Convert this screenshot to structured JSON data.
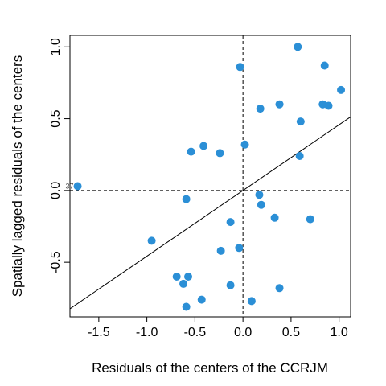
{
  "chart_data": {
    "type": "scatter",
    "title": "",
    "xlabel": "Residuals of the centers of the CCRJM",
    "ylabel": "Spatially lagged residuals of the centers",
    "xlim": [
      -1.8,
      1.12
    ],
    "ylim": [
      -0.88,
      1.08
    ],
    "xticks": [
      -1.5,
      -1.0,
      -0.5,
      0.0,
      0.5,
      1.0
    ],
    "xtick_labels": [
      "-1.5",
      "-1.0",
      "-0.5",
      "0.0",
      "0.5",
      "1.0"
    ],
    "yticks": [
      -0.5,
      0.0,
      0.5,
      1.0
    ],
    "ytick_labels": [
      "-0.5",
      "0.0",
      "0.5",
      "1.0"
    ],
    "point_color": "#2b8fd6",
    "grid": false,
    "reference_lines": [
      {
        "type": "vline",
        "x": 0,
        "style": "dashed"
      },
      {
        "type": "hline",
        "y": 0,
        "style": "dashed"
      }
    ],
    "regression_line": {
      "intercept": 0,
      "slope": 0.4577
    },
    "influential_label": {
      "text": "37",
      "x": -1.72,
      "y": 0.03
    },
    "points": [
      {
        "x": -1.72,
        "y": 0.03
      },
      {
        "x": -0.95,
        "y": -0.35
      },
      {
        "x": -0.69,
        "y": -0.6
      },
      {
        "x": -0.62,
        "y": -0.65
      },
      {
        "x": -0.59,
        "y": -0.81
      },
      {
        "x": -0.57,
        "y": -0.6
      },
      {
        "x": -0.59,
        "y": -0.06
      },
      {
        "x": -0.54,
        "y": 0.27
      },
      {
        "x": -0.43,
        "y": -0.76
      },
      {
        "x": -0.41,
        "y": 0.31
      },
      {
        "x": -0.24,
        "y": 0.26
      },
      {
        "x": -0.23,
        "y": -0.42
      },
      {
        "x": -0.13,
        "y": -0.66
      },
      {
        "x": -0.13,
        "y": -0.22
      },
      {
        "x": -0.04,
        "y": -0.4
      },
      {
        "x": -0.03,
        "y": 0.86
      },
      {
        "x": 0.02,
        "y": 0.32
      },
      {
        "x": 0.09,
        "y": -0.77
      },
      {
        "x": 0.17,
        "y": -0.03
      },
      {
        "x": 0.19,
        "y": -0.1
      },
      {
        "x": 0.18,
        "y": 0.57
      },
      {
        "x": 0.33,
        "y": -0.19
      },
      {
        "x": 0.38,
        "y": -0.68
      },
      {
        "x": 0.38,
        "y": 0.6
      },
      {
        "x": 0.57,
        "y": 1.0
      },
      {
        "x": 0.59,
        "y": 0.24
      },
      {
        "x": 0.6,
        "y": 0.48
      },
      {
        "x": 0.7,
        "y": -0.2
      },
      {
        "x": 0.83,
        "y": 0.6
      },
      {
        "x": 0.85,
        "y": 0.87
      },
      {
        "x": 0.89,
        "y": 0.59
      },
      {
        "x": 1.02,
        "y": 0.7
      }
    ]
  }
}
